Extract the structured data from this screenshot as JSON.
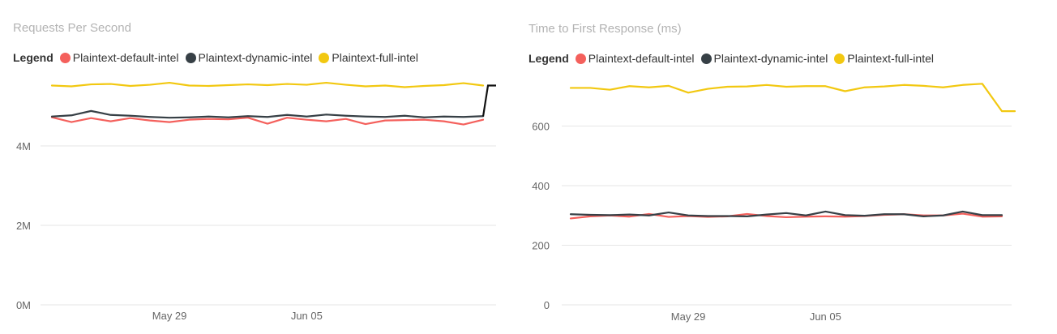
{
  "chart_data": [
    {
      "type": "line",
      "title": "Requests Per Second",
      "legend_title": "Legend",
      "legend_position": "top-left",
      "grid": true,
      "xlabel": "",
      "ylabel": "",
      "x_tick_labels": [
        "May 29",
        "Jun 05"
      ],
      "y_tick_labels": [
        "0M",
        "2M",
        "4M"
      ],
      "y_ticks": [
        0,
        2000000,
        4000000
      ],
      "ylim": [
        0,
        6000000
      ],
      "x": [
        "May 23",
        "May 24",
        "May 25",
        "May 26",
        "May 27",
        "May 28",
        "May 29",
        "May 30",
        "May 31",
        "Jun 01",
        "Jun 02",
        "Jun 03",
        "Jun 04",
        "Jun 05",
        "Jun 06",
        "Jun 07",
        "Jun 08",
        "Jun 09",
        "Jun 10",
        "Jun 11",
        "Jun 12",
        "Jun 13",
        "Jun 14"
      ],
      "series": [
        {
          "name": "Plaintext-default-intel",
          "color": "#f4605c",
          "values": [
            4720000,
            4600000,
            4700000,
            4620000,
            4700000,
            4640000,
            4600000,
            4660000,
            4680000,
            4670000,
            4710000,
            4560000,
            4710000,
            4660000,
            4620000,
            4680000,
            4550000,
            4640000,
            4650000,
            4660000,
            4620000,
            4540000,
            4660000
          ]
        },
        {
          "name": "Plaintext-dynamic-intel",
          "color": "#374046",
          "values": [
            4740000,
            4770000,
            4880000,
            4780000,
            4760000,
            4730000,
            4710000,
            4720000,
            4740000,
            4720000,
            4750000,
            4730000,
            4780000,
            4740000,
            4790000,
            4760000,
            4740000,
            4730000,
            4760000,
            4720000,
            4740000,
            4730000,
            4750000
          ]
        },
        {
          "name": "Plaintext-full-intel",
          "color": "#f2c811",
          "values": [
            5520000,
            5500000,
            5550000,
            5560000,
            5510000,
            5540000,
            5590000,
            5520000,
            5510000,
            5530000,
            5550000,
            5530000,
            5560000,
            5540000,
            5590000,
            5540000,
            5500000,
            5520000,
            5480000,
            5510000,
            5530000,
            5580000,
            5520000
          ]
        }
      ],
      "end_step": {
        "color": "#111111",
        "values": [
          4740000,
          5520000
        ]
      }
    },
    {
      "type": "line",
      "title": "Time to First Response (ms)",
      "legend_title": "Legend",
      "legend_position": "top-left",
      "grid": true,
      "xlabel": "",
      "ylabel": "",
      "x_tick_labels": [
        "May 29",
        "Jun 05"
      ],
      "y_tick_labels": [
        "0",
        "200",
        "400",
        "600"
      ],
      "y_ticks": [
        0,
        200,
        400,
        600
      ],
      "ylim": [
        0,
        800
      ],
      "x": [
        "May 23",
        "May 24",
        "May 25",
        "May 26",
        "May 27",
        "May 28",
        "May 29",
        "May 30",
        "May 31",
        "Jun 01",
        "Jun 02",
        "Jun 03",
        "Jun 04",
        "Jun 05",
        "Jun 06",
        "Jun 07",
        "Jun 08",
        "Jun 09",
        "Jun 10",
        "Jun 11",
        "Jun 12",
        "Jun 13",
        "Jun 14"
      ],
      "series": [
        {
          "name": "Plaintext-default-intel",
          "color": "#f4605c",
          "values": [
            290,
            297,
            300,
            296,
            305,
            295,
            298,
            295,
            297,
            305,
            298,
            294,
            296,
            297,
            296,
            298,
            302,
            304,
            300,
            300,
            306,
            296,
            297
          ]
        },
        {
          "name": "Plaintext-dynamic-intel",
          "color": "#374046",
          "values": [
            304,
            302,
            301,
            303,
            300,
            310,
            300,
            298,
            298,
            297,
            303,
            308,
            300,
            313,
            301,
            299,
            304,
            304,
            297,
            300,
            313,
            301,
            301
          ]
        },
        {
          "name": "Plaintext-full-intel",
          "color": "#f2c811",
          "values": [
            728,
            728,
            722,
            734,
            730,
            735,
            712,
            725,
            732,
            733,
            738,
            732,
            734,
            734,
            717,
            730,
            733,
            738,
            735,
            730,
            738,
            742,
            650
          ]
        }
      ]
    }
  ]
}
